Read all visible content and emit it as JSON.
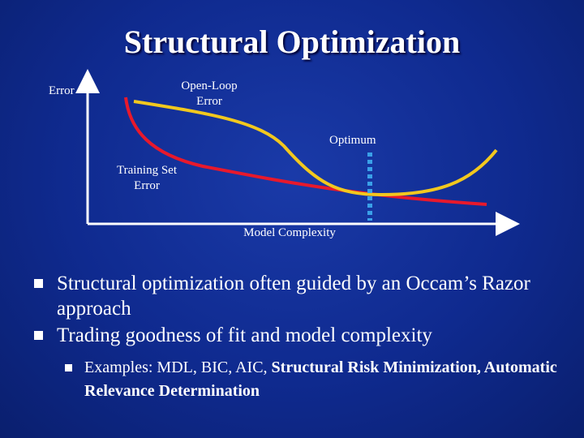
{
  "slide": {
    "title": "Structural Optimization"
  },
  "diagram": {
    "y_axis_label": "Error",
    "x_axis_label": "Model Complexity",
    "open_loop_label": "Open-Loop\nError",
    "training_label": "Training Set\nError",
    "optimum_label": "Optimum",
    "colors": {
      "open_loop_curve": "#f2c81e",
      "training_curve": "#e8192c",
      "optimum_marker": "#3aa0e8",
      "axes": "#ffffff"
    }
  },
  "bullets": [
    {
      "text": "Structural optimization often guided by an Occam’s Razor approach"
    },
    {
      "text": "Trading goodness of fit and model complexity"
    }
  ],
  "sub_bullet": {
    "normal": "Examples: MDL, BIC, AIC, ",
    "bold": "Structural Risk Minimization, Automatic Relevance Determination"
  }
}
